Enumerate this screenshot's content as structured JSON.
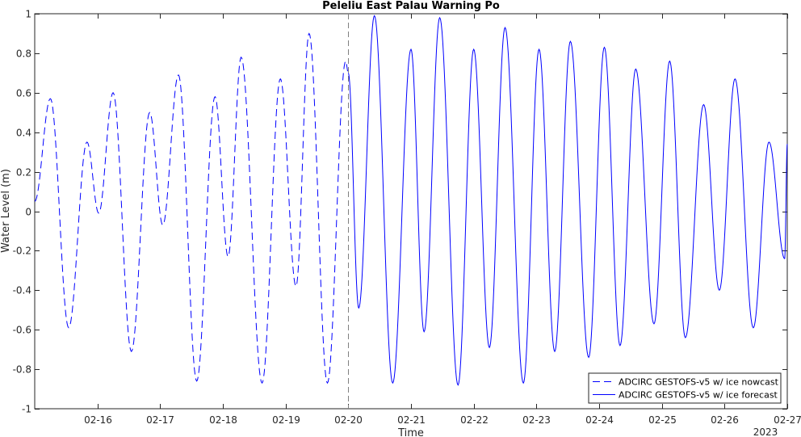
{
  "chart_data": {
    "type": "line",
    "title": "Peleliu East Palau Warning Po",
    "xlabel": "Time",
    "ylabel": "Water Level (m)",
    "year_label": "2023",
    "x_range": [
      "2023-02-15",
      "2023-02-27"
    ],
    "ylim": [
      -1,
      1
    ],
    "y_ticks": [
      -1,
      -0.8,
      -0.6,
      -0.4,
      -0.2,
      0,
      0.2,
      0.4,
      0.6,
      0.8,
      1
    ],
    "y_tick_labels": [
      "-1",
      "-0.8",
      "-0.6",
      "-0.4",
      "-0.2",
      "0",
      "0.2",
      "0.4",
      "0.6",
      "0.8",
      "1"
    ],
    "x_ticks": [
      "2023-02-16",
      "2023-02-17",
      "2023-02-18",
      "2023-02-19",
      "2023-02-20",
      "2023-02-21",
      "2023-02-22",
      "2023-02-23",
      "2023-02-24",
      "2023-02-25",
      "2023-02-26",
      "2023-02-27"
    ],
    "x_tick_labels": [
      "02-16",
      "02-17",
      "02-18",
      "02-19",
      "02-20",
      "02-21",
      "02-22",
      "02-23",
      "02-24",
      "02-25",
      "02-26",
      "02-27"
    ],
    "nowcast_forecast_divider": "2023-02-20",
    "grid": false,
    "legend_position": "bottom-right",
    "series": [
      {
        "name": "ADCIRC GESTOFS-v5 w/ ice nowcast",
        "color": "#0000ff",
        "style": "dashed",
        "extrema": [
          [
            "2023-02-15 00:00",
            0.05
          ],
          [
            "2023-02-15 06:00",
            0.57
          ],
          [
            "2023-02-15 13:00",
            -0.59
          ],
          [
            "2023-02-15 20:00",
            0.35
          ],
          [
            "2023-02-16 00:30",
            -0.01
          ],
          [
            "2023-02-16 06:00",
            0.6
          ],
          [
            "2023-02-16 13:00",
            -0.71
          ],
          [
            "2023-02-16 20:00",
            0.5
          ],
          [
            "2023-02-17 01:00",
            -0.07
          ],
          [
            "2023-02-17 07:00",
            0.69
          ],
          [
            "2023-02-17 14:00",
            -0.86
          ],
          [
            "2023-02-17 21:00",
            0.58
          ],
          [
            "2023-02-18 02:00",
            -0.23
          ],
          [
            "2023-02-18 07:00",
            0.78
          ],
          [
            "2023-02-18 15:00",
            -0.87
          ],
          [
            "2023-02-18 22:00",
            0.67
          ],
          [
            "2023-02-19 04:00",
            -0.38
          ],
          [
            "2023-02-19 09:00",
            0.9
          ],
          [
            "2023-02-19 16:00",
            -0.87
          ],
          [
            "2023-02-19 23:00",
            0.76
          ],
          [
            "2023-02-20 00:00",
            0.7
          ]
        ]
      },
      {
        "name": "ADCIRC GESTOFS-v5 w/ ice forecast",
        "color": "#0000ff",
        "style": "solid",
        "extrema": [
          [
            "2023-02-20 00:00",
            0.7
          ],
          [
            "2023-02-20 04:00",
            -0.49
          ],
          [
            "2023-02-20 10:00",
            0.99
          ],
          [
            "2023-02-20 17:00",
            -0.87
          ],
          [
            "2023-02-21 00:00",
            0.82
          ],
          [
            "2023-02-21 05:00",
            -0.61
          ],
          [
            "2023-02-21 11:00",
            0.98
          ],
          [
            "2023-02-21 18:00",
            -0.88
          ],
          [
            "2023-02-22 00:00",
            0.82
          ],
          [
            "2023-02-22 06:00",
            -0.69
          ],
          [
            "2023-02-22 12:00",
            0.93
          ],
          [
            "2023-02-22 19:00",
            -0.87
          ],
          [
            "2023-02-23 01:00",
            0.82
          ],
          [
            "2023-02-23 07:00",
            -0.71
          ],
          [
            "2023-02-23 13:00",
            0.86
          ],
          [
            "2023-02-23 20:00",
            -0.74
          ],
          [
            "2023-02-24 02:00",
            0.83
          ],
          [
            "2023-02-24 08:00",
            -0.68
          ],
          [
            "2023-02-24 14:00",
            0.72
          ],
          [
            "2023-02-24 21:00",
            -0.57
          ],
          [
            "2023-02-25 03:00",
            0.76
          ],
          [
            "2023-02-25 09:00",
            -0.64
          ],
          [
            "2023-02-25 16:00",
            0.54
          ],
          [
            "2023-02-25 22:00",
            -0.4
          ],
          [
            "2023-02-26 04:00",
            0.67
          ],
          [
            "2023-02-26 11:00",
            -0.59
          ],
          [
            "2023-02-26 17:00",
            0.35
          ],
          [
            "2023-02-26 23:00",
            -0.24
          ],
          [
            "2023-02-27 00:00",
            0.34
          ]
        ]
      }
    ]
  }
}
